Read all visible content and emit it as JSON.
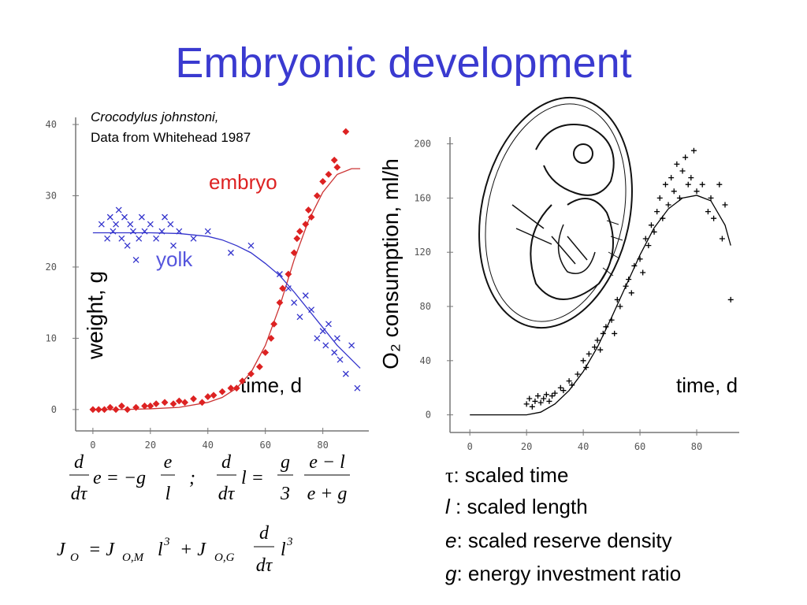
{
  "title": "Embryonic development",
  "chart_data": [
    {
      "type": "scatter",
      "subtitle": [
        "Crocodylus johnstoni,",
        "Data from Whitehead 1987"
      ],
      "ylabel": "weight, g",
      "xlabel": "time, d",
      "xlim": [
        -6,
        96
      ],
      "ylim": [
        -3,
        41
      ],
      "xticks": [
        0,
        20,
        40,
        60,
        80
      ],
      "yticks": [
        0,
        10,
        20,
        30,
        40
      ],
      "grid": false,
      "series": [
        {
          "name": "embryo",
          "color": "#dd2222",
          "marker": "diamond",
          "x": [
            0,
            2,
            4,
            6,
            8,
            10,
            12,
            15,
            18,
            20,
            22,
            25,
            28,
            30,
            32,
            35,
            38,
            40,
            42,
            45,
            48,
            50,
            52,
            55,
            58,
            60,
            62,
            63,
            65,
            66,
            68,
            70,
            71,
            72,
            74,
            75,
            76,
            78,
            80,
            82,
            84,
            85,
            88
          ],
          "values": [
            0,
            0,
            0,
            0.3,
            0,
            0.5,
            0,
            0.3,
            0.5,
            0.5,
            0.8,
            1,
            0.8,
            1.2,
            1,
            1.5,
            1,
            1.8,
            2,
            2.5,
            3,
            3,
            4,
            5,
            6,
            8,
            10,
            12,
            15,
            17,
            19,
            22,
            24,
            25,
            26,
            28,
            27,
            30,
            32,
            33,
            35,
            34,
            39
          ]
        },
        {
          "name": "yolk",
          "color": "#3333cc",
          "marker": "x",
          "x": [
            3,
            5,
            6,
            7,
            8,
            9,
            10,
            11,
            12,
            13,
            14,
            15,
            16,
            17,
            18,
            20,
            22,
            24,
            25,
            27,
            28,
            30,
            35,
            40,
            48,
            55,
            65,
            68,
            70,
            72,
            74,
            76,
            78,
            80,
            81,
            82,
            84,
            85,
            86,
            88,
            90,
            92
          ],
          "values": [
            26,
            24,
            27,
            25,
            26,
            28,
            24,
            27,
            23,
            26,
            25,
            21,
            24,
            27,
            25,
            26,
            24,
            25,
            27,
            26,
            23,
            25,
            24,
            25,
            22,
            23,
            19,
            17,
            15,
            13,
            16,
            14,
            10,
            11,
            9,
            12,
            8,
            10,
            7,
            5,
            9,
            3
          ]
        }
      ],
      "fits": [
        {
          "color": "#cc3333",
          "x": [
            0,
            10,
            20,
            30,
            40,
            45,
            50,
            55,
            60,
            65,
            70,
            75,
            80,
            85,
            90,
            93
          ],
          "values": [
            0,
            0,
            0.1,
            0.3,
            1,
            1.7,
            3,
            5.2,
            9,
            14.5,
            21,
            26.5,
            30.5,
            33,
            33.8,
            33.8
          ]
        },
        {
          "color": "#3333cc",
          "x": [
            0,
            10,
            20,
            30,
            40,
            45,
            50,
            55,
            60,
            65,
            70,
            75,
            80,
            85,
            90,
            93
          ],
          "values": [
            24.8,
            24.8,
            24.8,
            24.7,
            24.3,
            23.8,
            23,
            22,
            20.5,
            18.8,
            16.5,
            14,
            11.5,
            9,
            7,
            5.8
          ]
        }
      ]
    },
    {
      "type": "scatter",
      "ylabel": "O₂ consumption, ml/h",
      "xlabel": "time, d",
      "xlim": [
        -7,
        95
      ],
      "ylim": [
        -13,
        205
      ],
      "xticks": [
        0,
        20,
        40,
        60,
        80
      ],
      "yticks": [
        0,
        40,
        80,
        120,
        160,
        200
      ],
      "grid": false,
      "series": [
        {
          "color": "#000000",
          "marker": "plus",
          "x": [
            20,
            21,
            22,
            23,
            24,
            25,
            26,
            27,
            28,
            29,
            30,
            32,
            33,
            35,
            36,
            38,
            40,
            41,
            42,
            44,
            45,
            46,
            47,
            48,
            50,
            51,
            52,
            53,
            55,
            56,
            57,
            58,
            60,
            61,
            62,
            63,
            64,
            65,
            66,
            67,
            68,
            69,
            70,
            71,
            72,
            73,
            74,
            75,
            76,
            77,
            78,
            79,
            80,
            82,
            84,
            85,
            86,
            88,
            89,
            90,
            92
          ],
          "values": [
            8,
            12,
            6,
            10,
            14,
            9,
            12,
            15,
            10,
            14,
            16,
            20,
            18,
            25,
            22,
            30,
            40,
            35,
            45,
            50,
            55,
            48,
            60,
            65,
            70,
            60,
            85,
            80,
            95,
            100,
            90,
            110,
            115,
            105,
            130,
            125,
            140,
            135,
            150,
            160,
            145,
            170,
            155,
            175,
            165,
            185,
            160,
            180,
            190,
            170,
            175,
            195,
            165,
            170,
            150,
            160,
            145,
            170,
            130,
            155,
            85
          ]
        }
      ],
      "fits": [
        {
          "color": "#000000",
          "x": [
            0,
            20,
            25,
            30,
            35,
            40,
            45,
            50,
            55,
            60,
            65,
            70,
            75,
            80,
            85,
            90,
            92
          ],
          "values": [
            0,
            0,
            2,
            8,
            18,
            32,
            50,
            72,
            95,
            118,
            138,
            152,
            160,
            162,
            158,
            140,
            125
          ]
        }
      ]
    }
  ],
  "equations": [
    [
      "d",
      "dτ",
      "e = −g",
      "e",
      "l",
      ";",
      "d",
      "dτ",
      "l =",
      "g",
      "3",
      "e − l",
      "e + g"
    ],
    [
      "J",
      "O",
      "= J",
      "O,M",
      "l",
      "3",
      "+ J",
      "O,G",
      "d",
      "dτ",
      "l",
      "3"
    ]
  ],
  "definitions": [
    {
      "symbol": "τ",
      "text": ": scaled time"
    },
    {
      "symbol": "l",
      "text": " : scaled length"
    },
    {
      "symbol": "e",
      "text": ": scaled reserve density"
    },
    {
      "symbol": "g",
      "text": ": energy investment ratio"
    }
  ]
}
